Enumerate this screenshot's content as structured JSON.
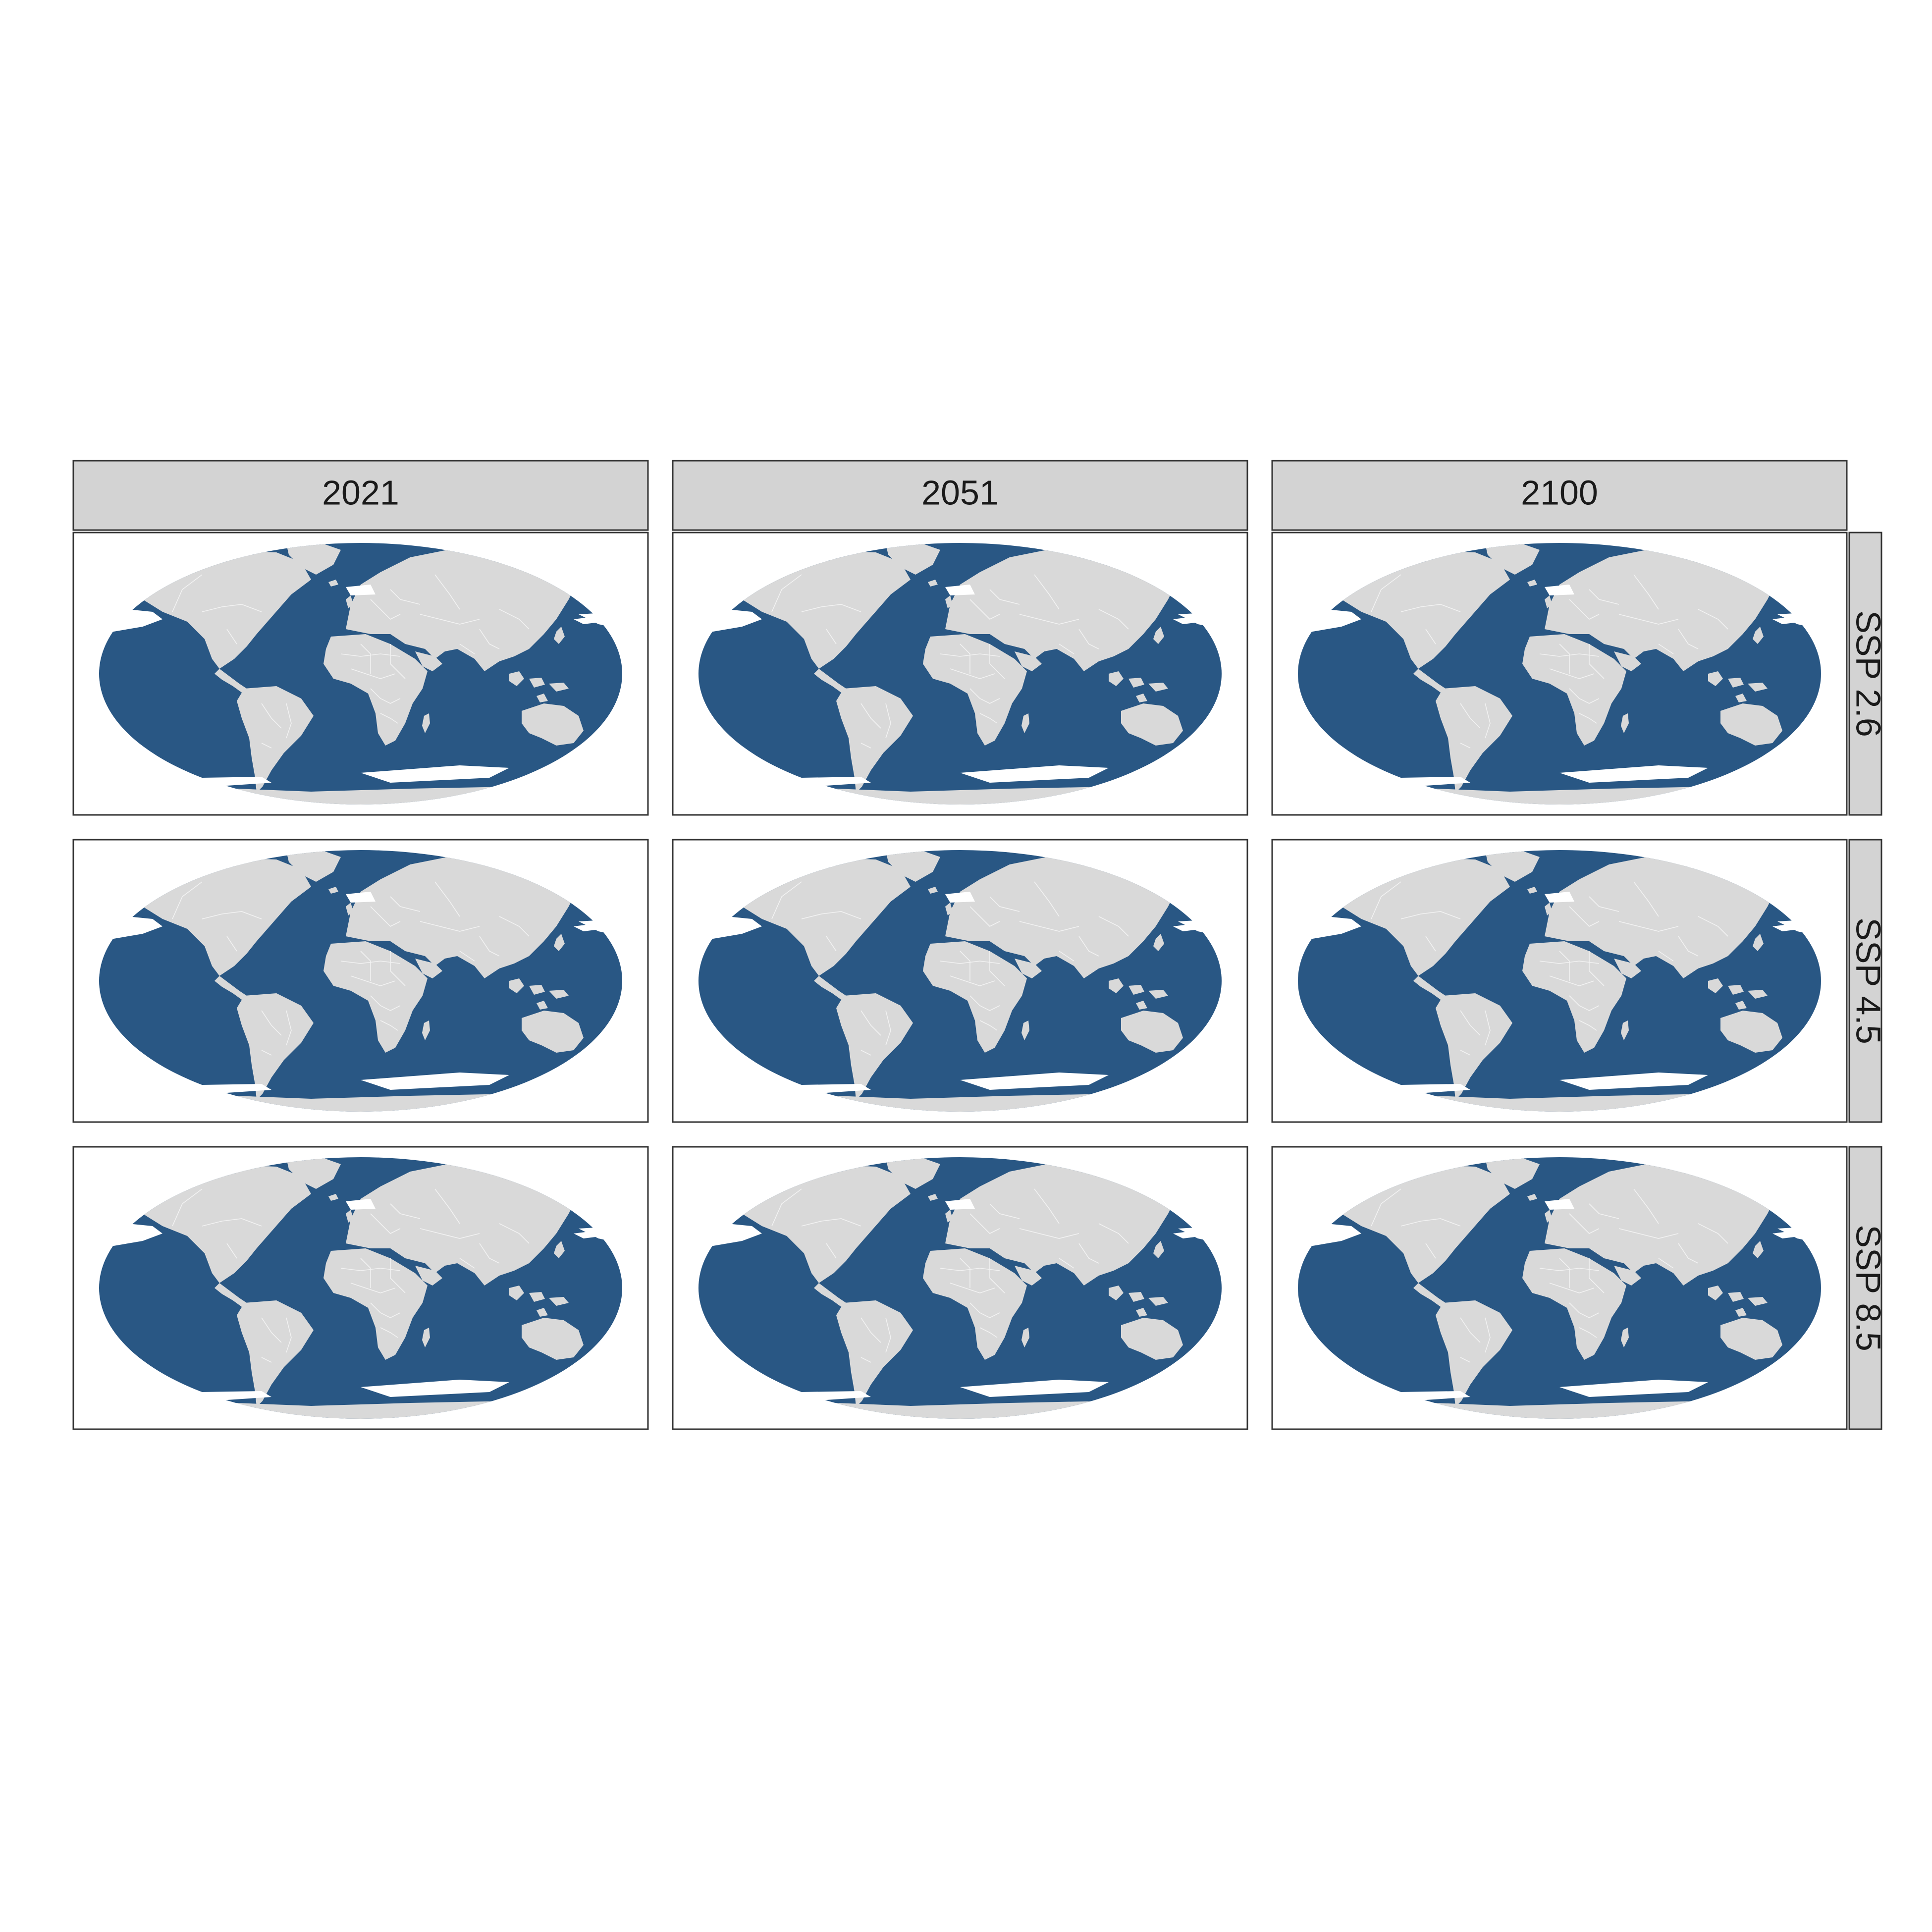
{
  "columns": [
    "2021",
    "2051",
    "2100"
  ],
  "rows": [
    "SSP 2.6",
    "SSP 4.5",
    "SSP 8.5"
  ],
  "colors": {
    "ocean": "#295784",
    "land": "#d9d9d9",
    "borders": "#f2f2f2",
    "ice": "#ffffff",
    "strip": "#d3d3d3",
    "frame": "#333333",
    "background": "#ffffff"
  },
  "map_projection": "Mollweide",
  "panels": [
    {
      "column": "2021",
      "row": "SSP 2.6",
      "north_ice": "moderate",
      "south_ice": "extensive"
    },
    {
      "column": "2051",
      "row": "SSP 2.6",
      "north_ice": "moderate",
      "south_ice": "extensive"
    },
    {
      "column": "2100",
      "row": "SSP 2.6",
      "north_ice": "reduced",
      "south_ice": "extensive"
    },
    {
      "column": "2021",
      "row": "SSP 4.5",
      "north_ice": "moderate",
      "south_ice": "extensive"
    },
    {
      "column": "2051",
      "row": "SSP 4.5",
      "north_ice": "moderate",
      "south_ice": "extensive"
    },
    {
      "column": "2100",
      "row": "SSP 4.5",
      "north_ice": "reduced",
      "south_ice": "extensive"
    },
    {
      "column": "2021",
      "row": "SSP 8.5",
      "north_ice": "moderate",
      "south_ice": "extensive"
    },
    {
      "column": "2051",
      "row": "SSP 8.5",
      "north_ice": "moderate",
      "south_ice": "extensive"
    },
    {
      "column": "2100",
      "row": "SSP 8.5",
      "north_ice": "reduced",
      "south_ice": "extensive"
    }
  ]
}
